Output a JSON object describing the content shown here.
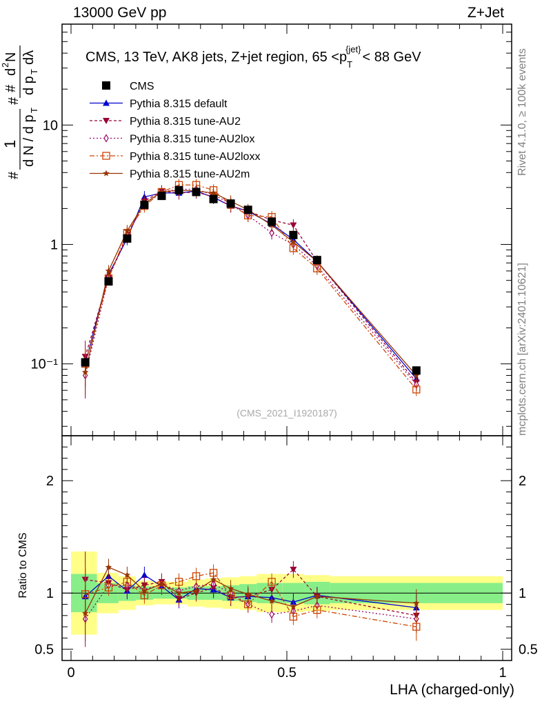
{
  "header": {
    "left": "13000 GeV pp",
    "right": "Z+Jet"
  },
  "side_labels": {
    "rivet": "Rivet 4.1.0, ≥ 100k events",
    "mcplots": "mcplots.cern.ch [arXiv:2401.10621]"
  },
  "chart_data": {
    "type": "line",
    "title": "CMS, 13 TeV, AK8 jets, Z+jet region, 65 < p_T^{jet} < 88 GeV",
    "title_parts": {
      "main": "CMS, 13 TeV, AK8 jets, Z+jet region, 65 <p",
      "sub": "T",
      "sup": "{jet}",
      "end": "< 88 GeV"
    },
    "analysis": "(CMS_2021_I1920187)",
    "xlabel": "LHA (charged-only)",
    "ylabel_main": "1/N dN/dp_T d²N/dp_T dλ",
    "ylabel_ratio": "Ratio to CMS",
    "xlim": [
      0,
      1
    ],
    "ylim_main": [
      0.025,
      70
    ],
    "ylim_ratio": [
      0.4,
      2.4
    ],
    "x_ticks": [
      "0",
      "0.5",
      "1"
    ],
    "y_ticks_main": [
      "10⁻¹",
      "1",
      "10"
    ],
    "y_ticks_ratio": [
      "0.5",
      "1",
      "2"
    ],
    "x": [
      0.033,
      0.087,
      0.13,
      0.17,
      0.21,
      0.25,
      0.29,
      0.33,
      0.37,
      0.41,
      0.465,
      0.515,
      0.57,
      0.8
    ],
    "x_edges": [
      0,
      0.06,
      0.11,
      0.15,
      0.19,
      0.23,
      0.27,
      0.31,
      0.35,
      0.39,
      0.43,
      0.49,
      0.54,
      0.6,
      1.0
    ],
    "cms": [
      0.103,
      0.49,
      1.12,
      2.15,
      2.55,
      2.85,
      2.75,
      2.4,
      2.2,
      1.95,
      1.55,
      1.2,
      0.74,
      0.088
    ],
    "band_green_half": [
      0.17,
      0.09,
      0.07,
      0.06,
      0.05,
      0.05,
      0.06,
      0.06,
      0.07,
      0.08,
      0.09,
      0.09,
      0.1,
      0.09
    ],
    "band_yellow_half": [
      0.37,
      0.18,
      0.15,
      0.11,
      0.1,
      0.1,
      0.12,
      0.13,
      0.14,
      0.15,
      0.17,
      0.17,
      0.16,
      0.15
    ],
    "series": [
      {
        "name": "Pythia 8.315 default",
        "color": "#0000cc",
        "dash": "",
        "marker": "triangle-up",
        "values": [
          0.1,
          0.56,
          1.12,
          2.5,
          2.7,
          2.7,
          2.8,
          2.48,
          2.1,
          1.9,
          1.48,
          1.1,
          0.72,
          0.075
        ],
        "ratio": [
          0.97,
          1.15,
          1.02,
          1.16,
          1.06,
          0.94,
          1.04,
          1.03,
          0.96,
          0.97,
          0.96,
          0.92,
          0.98,
          0.87
        ]
      },
      {
        "name": "Pythia 8.315 tune-AU2",
        "color": "#990033",
        "dash": "4,3",
        "marker": "triangle-down",
        "values": [
          0.115,
          0.53,
          1.16,
          2.3,
          2.8,
          2.7,
          2.75,
          2.5,
          2.1,
          1.9,
          1.6,
          1.45,
          0.72,
          0.07
        ],
        "ratio": [
          1.12,
          1.09,
          1.03,
          1.07,
          1.1,
          0.95,
          1.0,
          1.05,
          0.96,
          0.97,
          1.03,
          1.21,
          0.97,
          0.8
        ]
      },
      {
        "name": "Pythia 8.315 tune-AU2lox",
        "color": "#990066",
        "dash": "2,3",
        "marker": "diamond",
        "values": [
          0.08,
          0.53,
          1.2,
          2.2,
          2.75,
          2.9,
          2.9,
          2.6,
          2.2,
          1.75,
          1.25,
          1.0,
          0.66,
          0.067
        ],
        "ratio": [
          0.77,
          1.07,
          1.07,
          1.03,
          1.08,
          1.02,
          1.06,
          1.08,
          1.0,
          0.9,
          0.81,
          0.84,
          0.89,
          0.77
        ]
      },
      {
        "name": "Pythia 8.315 tune-AU2loxx",
        "color": "#cc4400",
        "dash": "7,3,2,3",
        "marker": "square-open",
        "values": [
          0.1,
          0.52,
          1.25,
          2.1,
          2.75,
          3.15,
          3.15,
          2.85,
          2.15,
          1.75,
          1.7,
          0.93,
          0.63,
          0.061
        ],
        "ratio": [
          0.99,
          1.05,
          1.1,
          0.98,
          1.07,
          1.1,
          1.15,
          1.18,
          0.98,
          0.9,
          1.1,
          0.79,
          0.85,
          0.7
        ]
      },
      {
        "name": "Pythia 8.315 tune-AU2m",
        "color": "#993300",
        "dash": "",
        "marker": "star",
        "values": [
          0.085,
          0.6,
          1.3,
          2.2,
          2.75,
          2.85,
          2.8,
          2.7,
          2.3,
          1.95,
          1.45,
          1.05,
          0.72,
          0.08
        ],
        "ratio": [
          0.82,
          1.23,
          1.16,
          1.02,
          1.08,
          1.0,
          1.02,
          1.12,
          1.04,
          0.99,
          0.93,
          0.88,
          0.97,
          0.91
        ]
      }
    ],
    "legend_cms": "CMS"
  }
}
